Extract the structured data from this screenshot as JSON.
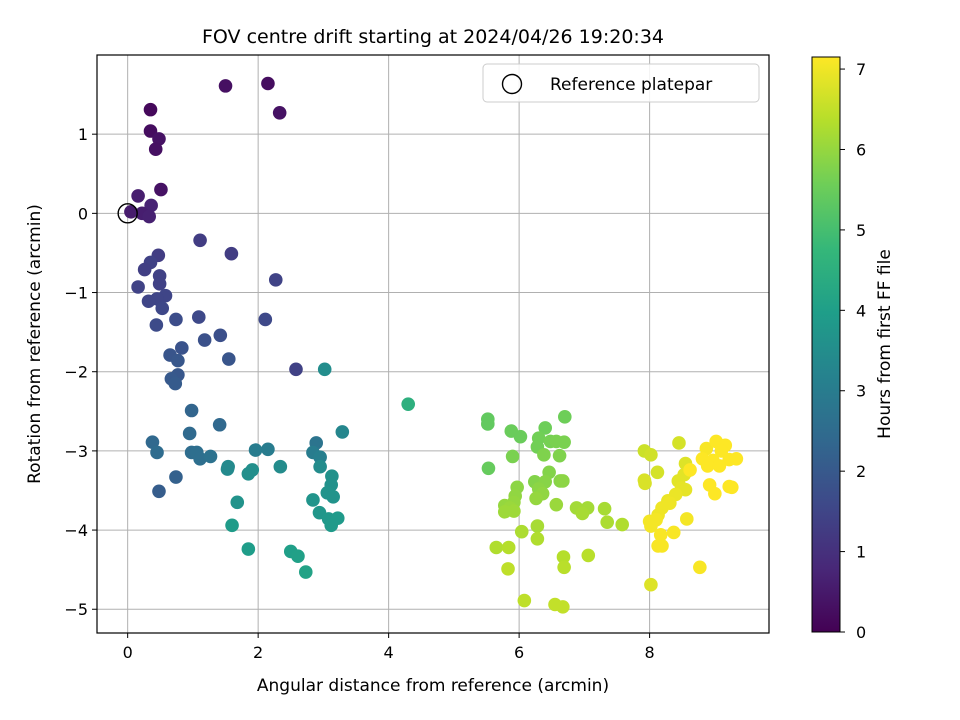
{
  "chart_data": {
    "type": "scatter",
    "title": "FOV centre drift starting at 2024/04/26 19:20:34",
    "xlabel": "Angular distance from reference (arcmin)",
    "ylabel": "Rotation from reference (arcmin)",
    "xlim": [
      -0.47,
      9.83
    ],
    "ylim": [
      -5.3,
      2.0
    ],
    "xticks": [
      0,
      2,
      4,
      6,
      8
    ],
    "yticks": [
      1,
      0,
      -1,
      -2,
      -3,
      -4,
      -5
    ],
    "grid": true,
    "legend": {
      "position": "top-right",
      "entries": [
        {
          "label": "Reference platepar"
        }
      ]
    },
    "reference_point": {
      "x": 0,
      "y": 0
    },
    "colorbar": {
      "label": "Hours from first FF file",
      "range": [
        0,
        7.15
      ],
      "ticks": [
        0,
        1,
        2,
        3,
        4,
        5,
        6,
        7
      ],
      "colormap": "viridis",
      "colors": [
        "#440154",
        "#482878",
        "#3e4989",
        "#31688e",
        "#26828e",
        "#1f9e89",
        "#35b779",
        "#6ece58",
        "#b5de2b",
        "#fde725"
      ]
    },
    "series": [
      {
        "points": [
          {
            "x": 0.35,
            "y": 1.31,
            "t": 0.15
          },
          {
            "x": 0.35,
            "y": 1.04,
            "t": 0.25
          },
          {
            "x": 0.48,
            "y": 0.94,
            "t": 0.35
          },
          {
            "x": 0.43,
            "y": 0.81,
            "t": 0.3
          },
          {
            "x": 0.51,
            "y": 0.3,
            "t": 0.35
          },
          {
            "x": 0.16,
            "y": 0.22,
            "t": 0.6
          },
          {
            "x": 0.36,
            "y": 0.1,
            "t": 0.7
          },
          {
            "x": 0.05,
            "y": 0.02,
            "t": 0.55
          },
          {
            "x": 0.22,
            "y": 0.0,
            "t": 0.6
          },
          {
            "x": 0.33,
            "y": -0.04,
            "t": 0.65
          },
          {
            "x": 1.5,
            "y": 1.61,
            "t": 0.3
          },
          {
            "x": 2.15,
            "y": 1.64,
            "t": 0.25
          },
          {
            "x": 2.33,
            "y": 1.27,
            "t": 0.35
          },
          {
            "x": 0.47,
            "y": -0.53,
            "t": 1.3
          },
          {
            "x": 1.11,
            "y": -0.34,
            "t": 1.3
          },
          {
            "x": 1.59,
            "y": -0.51,
            "t": 1.3
          },
          {
            "x": 0.35,
            "y": -0.62,
            "t": 1.4
          },
          {
            "x": 0.26,
            "y": -0.71,
            "t": 1.35
          },
          {
            "x": 0.49,
            "y": -0.79,
            "t": 1.4
          },
          {
            "x": 0.49,
            "y": -0.89,
            "t": 1.4
          },
          {
            "x": 0.16,
            "y": -0.93,
            "t": 1.45
          },
          {
            "x": 2.27,
            "y": -0.84,
            "t": 1.45
          },
          {
            "x": 0.58,
            "y": -1.04,
            "t": 1.5
          },
          {
            "x": 0.45,
            "y": -1.08,
            "t": 1.5
          },
          {
            "x": 0.32,
            "y": -1.11,
            "t": 1.5
          },
          {
            "x": 0.53,
            "y": -1.2,
            "t": 1.55
          },
          {
            "x": 1.09,
            "y": -1.31,
            "t": 1.6
          },
          {
            "x": 2.11,
            "y": -1.34,
            "t": 1.6
          },
          {
            "x": 0.74,
            "y": -1.34,
            "t": 1.7
          },
          {
            "x": 0.44,
            "y": -1.41,
            "t": 1.65
          },
          {
            "x": 1.42,
            "y": -1.54,
            "t": 1.75
          },
          {
            "x": 1.18,
            "y": -1.6,
            "t": 1.8
          },
          {
            "x": 0.83,
            "y": -1.7,
            "t": 1.85
          },
          {
            "x": 0.65,
            "y": -1.79,
            "t": 1.9
          },
          {
            "x": 1.55,
            "y": -1.84,
            "t": 1.9
          },
          {
            "x": 0.77,
            "y": -1.86,
            "t": 1.95
          },
          {
            "x": 2.58,
            "y": -1.97,
            "t": 1.4
          },
          {
            "x": 0.77,
            "y": -2.04,
            "t": 1.95
          },
          {
            "x": 0.67,
            "y": -2.09,
            "t": 2.0
          },
          {
            "x": 0.73,
            "y": -2.15,
            "t": 2.05
          },
          {
            "x": 0.48,
            "y": -3.51,
            "t": 2.1
          },
          {
            "x": 0.74,
            "y": -3.33,
            "t": 2.2
          },
          {
            "x": 0.98,
            "y": -2.49,
            "t": 2.3
          },
          {
            "x": 1.41,
            "y": -2.67,
            "t": 2.4
          },
          {
            "x": 0.95,
            "y": -2.78,
            "t": 2.45
          },
          {
            "x": 0.38,
            "y": -2.89,
            "t": 2.4
          },
          {
            "x": 0.45,
            "y": -3.02,
            "t": 2.5
          },
          {
            "x": 0.98,
            "y": -3.02,
            "t": 2.55
          },
          {
            "x": 1.06,
            "y": -3.02,
            "t": 2.6
          },
          {
            "x": 1.11,
            "y": -3.1,
            "t": 2.6
          },
          {
            "x": 1.27,
            "y": -3.07,
            "t": 2.7
          },
          {
            "x": 2.89,
            "y": -2.9,
            "t": 2.75
          },
          {
            "x": 1.96,
            "y": -2.99,
            "t": 3.0
          },
          {
            "x": 2.15,
            "y": -2.98,
            "t": 3.0
          },
          {
            "x": 2.84,
            "y": -3.02,
            "t": 3.0
          },
          {
            "x": 2.95,
            "y": -3.08,
            "t": 3.1
          },
          {
            "x": 3.02,
            "y": -1.97,
            "t": 3.5
          },
          {
            "x": 3.29,
            "y": -2.76,
            "t": 3.3
          },
          {
            "x": 1.54,
            "y": -3.2,
            "t": 3.4
          },
          {
            "x": 1.53,
            "y": -3.23,
            "t": 3.4
          },
          {
            "x": 2.34,
            "y": -3.2,
            "t": 3.45
          },
          {
            "x": 2.95,
            "y": -3.2,
            "t": 3.45
          },
          {
            "x": 1.91,
            "y": -3.24,
            "t": 3.55
          },
          {
            "x": 1.85,
            "y": -3.29,
            "t": 3.55
          },
          {
            "x": 3.13,
            "y": -3.32,
            "t": 3.6
          },
          {
            "x": 3.12,
            "y": -3.43,
            "t": 3.6
          },
          {
            "x": 3.06,
            "y": -3.53,
            "t": 3.65
          },
          {
            "x": 3.15,
            "y": -3.58,
            "t": 3.65
          },
          {
            "x": 2.84,
            "y": -3.62,
            "t": 3.7
          },
          {
            "x": 1.68,
            "y": -3.65,
            "t": 3.65
          },
          {
            "x": 2.94,
            "y": -3.78,
            "t": 3.75
          },
          {
            "x": 3.08,
            "y": -3.86,
            "t": 3.8
          },
          {
            "x": 3.22,
            "y": -3.85,
            "t": 3.85
          },
          {
            "x": 3.12,
            "y": -3.94,
            "t": 3.85
          },
          {
            "x": 1.6,
            "y": -3.94,
            "t": 3.9
          },
          {
            "x": 1.85,
            "y": -4.24,
            "t": 3.95
          },
          {
            "x": 2.5,
            "y": -4.27,
            "t": 4.0
          },
          {
            "x": 2.61,
            "y": -4.33,
            "t": 4.05
          },
          {
            "x": 2.73,
            "y": -4.53,
            "t": 4.1
          },
          {
            "x": 4.3,
            "y": -2.41,
            "t": 4.5
          },
          {
            "x": 5.52,
            "y": -2.6,
            "t": 5.4
          },
          {
            "x": 5.52,
            "y": -2.66,
            "t": 5.4
          },
          {
            "x": 5.53,
            "y": -3.22,
            "t": 5.45
          },
          {
            "x": 5.88,
            "y": -2.75,
            "t": 5.5
          },
          {
            "x": 6.02,
            "y": -2.82,
            "t": 5.5
          },
          {
            "x": 6.4,
            "y": -2.71,
            "t": 5.55
          },
          {
            "x": 6.7,
            "y": -2.57,
            "t": 5.55
          },
          {
            "x": 6.3,
            "y": -2.84,
            "t": 5.6
          },
          {
            "x": 6.28,
            "y": -2.95,
            "t": 5.6
          },
          {
            "x": 6.48,
            "y": -2.88,
            "t": 5.65
          },
          {
            "x": 6.57,
            "y": -2.88,
            "t": 5.7
          },
          {
            "x": 6.69,
            "y": -2.89,
            "t": 5.7
          },
          {
            "x": 5.9,
            "y": -3.07,
            "t": 5.7
          },
          {
            "x": 6.38,
            "y": -3.05,
            "t": 5.75
          },
          {
            "x": 6.62,
            "y": -3.06,
            "t": 5.75
          },
          {
            "x": 6.46,
            "y": -3.27,
            "t": 5.8
          },
          {
            "x": 6.24,
            "y": -3.39,
            "t": 5.8
          },
          {
            "x": 6.4,
            "y": -3.39,
            "t": 5.85
          },
          {
            "x": 6.63,
            "y": -3.38,
            "t": 5.85
          },
          {
            "x": 6.67,
            "y": -3.38,
            "t": 5.9
          },
          {
            "x": 5.97,
            "y": -3.46,
            "t": 5.9
          },
          {
            "x": 6.3,
            "y": -3.48,
            "t": 5.9
          },
          {
            "x": 6.36,
            "y": -3.54,
            "t": 5.95
          },
          {
            "x": 5.94,
            "y": -3.57,
            "t": 5.95
          },
          {
            "x": 5.92,
            "y": -3.65,
            "t": 6.0
          },
          {
            "x": 6.26,
            "y": -3.6,
            "t": 6.0
          },
          {
            "x": 5.78,
            "y": -3.69,
            "t": 6.0
          },
          {
            "x": 5.86,
            "y": -3.72,
            "t": 6.05
          },
          {
            "x": 6.57,
            "y": -3.68,
            "t": 6.05
          },
          {
            "x": 5.92,
            "y": -3.76,
            "t": 6.1
          },
          {
            "x": 5.78,
            "y": -3.77,
            "t": 6.1
          },
          {
            "x": 6.88,
            "y": -3.72,
            "t": 6.15
          },
          {
            "x": 7.05,
            "y": -3.72,
            "t": 6.15
          },
          {
            "x": 6.97,
            "y": -3.79,
            "t": 6.2
          },
          {
            "x": 7.31,
            "y": -3.73,
            "t": 6.2
          },
          {
            "x": 7.35,
            "y": -3.9,
            "t": 6.25
          },
          {
            "x": 7.58,
            "y": -3.93,
            "t": 6.3
          },
          {
            "x": 6.28,
            "y": -3.95,
            "t": 6.2
          },
          {
            "x": 6.04,
            "y": -4.02,
            "t": 6.25
          },
          {
            "x": 6.28,
            "y": -4.11,
            "t": 6.3
          },
          {
            "x": 5.65,
            "y": -4.22,
            "t": 6.3
          },
          {
            "x": 5.84,
            "y": -4.22,
            "t": 6.35
          },
          {
            "x": 6.68,
            "y": -4.34,
            "t": 6.35
          },
          {
            "x": 7.06,
            "y": -4.32,
            "t": 6.4
          },
          {
            "x": 6.69,
            "y": -4.47,
            "t": 6.4
          },
          {
            "x": 5.83,
            "y": -4.49,
            "t": 6.45
          },
          {
            "x": 6.08,
            "y": -4.89,
            "t": 6.45
          },
          {
            "x": 6.55,
            "y": -4.94,
            "t": 6.5
          },
          {
            "x": 6.67,
            "y": -4.97,
            "t": 6.5
          },
          {
            "x": 7.92,
            "y": -3.0,
            "t": 6.6
          },
          {
            "x": 8.02,
            "y": -3.05,
            "t": 6.65
          },
          {
            "x": 8.45,
            "y": -2.9,
            "t": 6.7
          },
          {
            "x": 8.12,
            "y": -3.27,
            "t": 6.7
          },
          {
            "x": 7.92,
            "y": -3.37,
            "t": 6.75
          },
          {
            "x": 7.93,
            "y": -3.41,
            "t": 6.75
          },
          {
            "x": 8.55,
            "y": -3.16,
            "t": 6.8
          },
          {
            "x": 8.59,
            "y": -3.25,
            "t": 6.8
          },
          {
            "x": 8.53,
            "y": -3.3,
            "t": 6.85
          },
          {
            "x": 8.44,
            "y": -3.38,
            "t": 6.85
          },
          {
            "x": 8.49,
            "y": -3.47,
            "t": 6.9
          },
          {
            "x": 8.55,
            "y": -3.49,
            "t": 6.9
          },
          {
            "x": 8.4,
            "y": -3.55,
            "t": 6.95
          },
          {
            "x": 8.28,
            "y": -3.63,
            "t": 6.95
          },
          {
            "x": 8.31,
            "y": -3.66,
            "t": 7.0
          },
          {
            "x": 8.19,
            "y": -3.72,
            "t": 7.0
          },
          {
            "x": 8.13,
            "y": -3.81,
            "t": 7.0
          },
          {
            "x": 8.1,
            "y": -3.87,
            "t": 7.05
          },
          {
            "x": 8.0,
            "y": -3.89,
            "t": 7.05
          },
          {
            "x": 8.02,
            "y": -3.95,
            "t": 7.05
          },
          {
            "x": 8.57,
            "y": -3.86,
            "t": 7.05
          },
          {
            "x": 8.37,
            "y": -4.03,
            "t": 7.1
          },
          {
            "x": 8.17,
            "y": -4.06,
            "t": 7.1
          },
          {
            "x": 8.13,
            "y": -4.2,
            "t": 7.1
          },
          {
            "x": 8.19,
            "y": -4.2,
            "t": 7.1
          },
          {
            "x": 8.02,
            "y": -4.69,
            "t": 6.8
          },
          {
            "x": 8.77,
            "y": -4.47,
            "t": 7.1
          },
          {
            "x": 8.87,
            "y": -2.97,
            "t": 7.1
          },
          {
            "x": 9.02,
            "y": -2.88,
            "t": 7.15
          },
          {
            "x": 9.16,
            "y": -2.93,
            "t": 7.15
          },
          {
            "x": 9.1,
            "y": -3.0,
            "t": 7.15
          },
          {
            "x": 8.81,
            "y": -3.1,
            "t": 7.15
          },
          {
            "x": 8.97,
            "y": -3.12,
            "t": 7.15
          },
          {
            "x": 9.22,
            "y": -3.11,
            "t": 7.15
          },
          {
            "x": 9.33,
            "y": -3.1,
            "t": 7.15
          },
          {
            "x": 8.89,
            "y": -3.19,
            "t": 7.15
          },
          {
            "x": 9.07,
            "y": -3.19,
            "t": 7.15
          },
          {
            "x": 8.62,
            "y": -3.24,
            "t": 7.15
          },
          {
            "x": 8.92,
            "y": -3.43,
            "t": 7.15
          },
          {
            "x": 9.22,
            "y": -3.45,
            "t": 7.15
          },
          {
            "x": 9.26,
            "y": -3.46,
            "t": 7.15
          },
          {
            "x": 9.0,
            "y": -3.54,
            "t": 7.15
          }
        ]
      }
    ]
  }
}
